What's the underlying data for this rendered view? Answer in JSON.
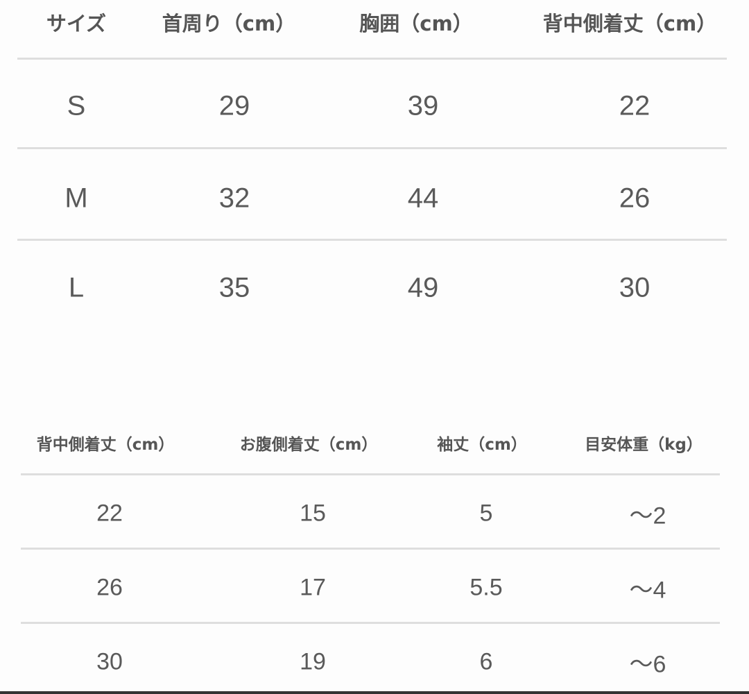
{
  "table1": {
    "headers": [
      "サイズ",
      "首周り（cm）",
      "胸囲（cm）",
      "背中側着丈（cm）"
    ],
    "rows": [
      [
        "S",
        "29",
        "39",
        "22"
      ],
      [
        "M",
        "32",
        "44",
        "26"
      ],
      [
        "L",
        "35",
        "49",
        "30"
      ]
    ]
  },
  "table2": {
    "headers": [
      "背中側着丈（cm）",
      "お腹側着丈（cm）",
      "袖丈（cm）",
      "目安体重（kg）"
    ],
    "rows": [
      [
        "22",
        "15",
        "5",
        "～2"
      ],
      [
        "26",
        "17",
        "5.5",
        "～4"
      ],
      [
        "30",
        "19",
        "6",
        "～6"
      ]
    ]
  }
}
